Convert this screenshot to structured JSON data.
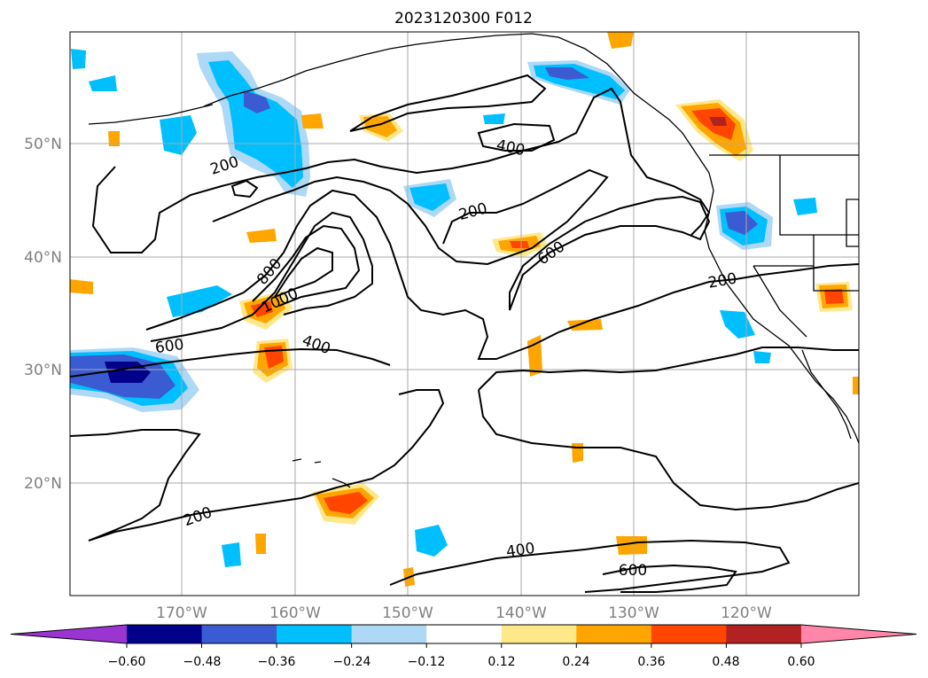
{
  "title": "2023120300 F012",
  "axes": {
    "lat_ticks": [
      "50°N",
      "40°N",
      "30°N",
      "20°N"
    ],
    "lon_ticks": [
      "170°W",
      "160°W",
      "150°W",
      "140°W",
      "130°W",
      "120°W"
    ]
  },
  "contour_labels": [
    "200",
    "400",
    "200",
    "600",
    "800",
    "1000",
    "600",
    "400",
    "200",
    "200",
    "400",
    "600"
  ],
  "colorbar": {
    "ticks": [
      "−0.60",
      "−0.48",
      "−0.36",
      "−0.24",
      "−0.12",
      "0.12",
      "0.24",
      "0.36",
      "0.48",
      "0.60"
    ],
    "colors": [
      "#9b35d1",
      "#00008b",
      "#3a5bd1",
      "#00bfff",
      "#add8f6",
      "#ffffff",
      "#ffe88a",
      "#ffa500",
      "#ff4500",
      "#b22222",
      "#ff86a9"
    ]
  },
  "fill_colors": {
    "neg_weak": "#add8f6",
    "neg_mod": "#00bfff",
    "neg_strong": "#3a5bd1",
    "neg_vstrong": "#00008b",
    "pos_weak": "#ffe88a",
    "pos_mod": "#ffa500",
    "pos_strong": "#ff4500",
    "pos_vstrong": "#b22222"
  }
}
